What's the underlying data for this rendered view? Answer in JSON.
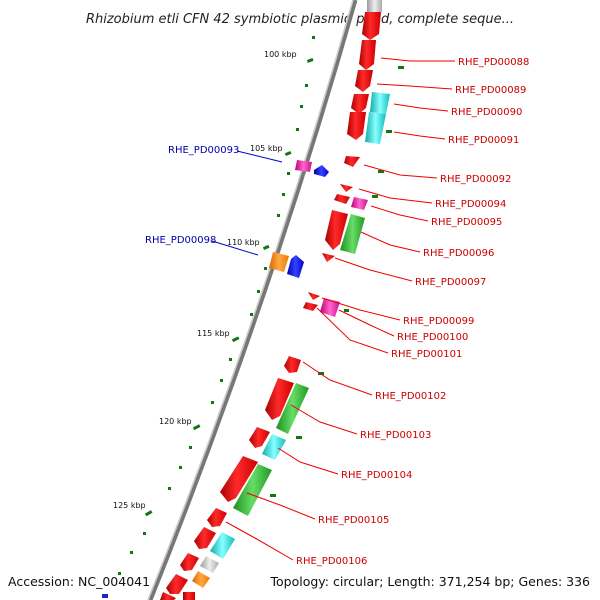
{
  "title": "Rhizobium etli CFN 42 symbiotic plasmid p42d, complete seque...",
  "footer": {
    "accession": "Accession: NC_004041",
    "summary": "Topology: circular; Length: 371,254 bp; Genes: 336"
  },
  "colors": {
    "backbone": "#888888",
    "forward_gene": "#ee0000",
    "green_gene": "#33bb33",
    "cyan_gene": "#22dddd",
    "magenta_gene": "#ee1199",
    "orange_gene": "#ff8800",
    "blue_gene": "#0000ee",
    "grey_gene": "#bbbbbb",
    "tick": "#117711",
    "label_right": "#cc0000",
    "label_left": "#0000aa"
  },
  "kbp_ticks": [
    {
      "pos_kbp": 100,
      "label": "100 kbp"
    },
    {
      "pos_kbp": 105,
      "label": "105 kbp"
    },
    {
      "pos_kbp": 110,
      "label": "110 kbp"
    },
    {
      "pos_kbp": 115,
      "label": "115 kbp"
    },
    {
      "pos_kbp": 120,
      "label": "120 kbp"
    },
    {
      "pos_kbp": 125,
      "label": "125 kbp"
    }
  ],
  "gene_labels_right": [
    "RHE_PD00088",
    "RHE_PD00089",
    "RHE_PD00090",
    "RHE_PD00091",
    "RHE_PD00092",
    "RHE_PD00094",
    "RHE_PD00095",
    "RHE_PD00096",
    "RHE_PD00097",
    "RHE_PD00099",
    "RHE_PD00100",
    "RHE_PD00101",
    "RHE_PD00102",
    "RHE_PD00103",
    "RHE_PD00104",
    "RHE_PD00105",
    "RHE_PD00106"
  ],
  "gene_labels_left": [
    "RHE_PD00093",
    "RHE_PD00098"
  ]
}
